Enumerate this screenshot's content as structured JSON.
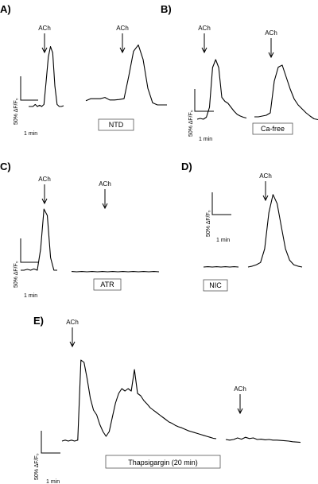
{
  "chart_data": [
    {
      "type": "line",
      "panel": "A)",
      "stimulus_label": "ACh",
      "scale_y": "50% ΔF/F₀",
      "scale_x": "1 min",
      "condition_label": "NTD",
      "series": [
        {
          "values": [
            0,
            0,
            0,
            0.05,
            0,
            0.03,
            0,
            0.05,
            0.6,
            1.2,
            1.45,
            1.3,
            0.5,
            0.05,
            0,
            0,
            0.02
          ]
        },
        {
          "values": [
            0.1,
            0.15,
            0.15,
            0.15,
            0.18,
            0.12,
            0.12,
            0.13,
            0.15,
            0.7,
            1.3,
            1.45,
            1.1,
            0.4,
            0.05,
            0,
            0,
            0
          ]
        }
      ]
    },
    {
      "type": "line",
      "panel": "B)",
      "stimulus_label": "ACh",
      "scale_y": "50% ΔF/F₀",
      "scale_x": "1 min",
      "condition_label": "Ca-free",
      "series": [
        {
          "values": [
            0,
            0.02,
            0,
            0.05,
            0.3,
            1.3,
            1.5,
            1.3,
            0.55,
            0.45,
            0.4,
            0.3,
            0.2,
            0.12,
            0.08,
            0.05,
            0.03
          ]
        },
        {
          "values": [
            0.1,
            0.1,
            0.12,
            0.14,
            0.2,
            1.0,
            1.35,
            1.4,
            1.1,
            0.8,
            0.55,
            0.4,
            0.3,
            0.2,
            0.12,
            0.05,
            0.03
          ]
        }
      ]
    },
    {
      "type": "line",
      "panel": "C)",
      "stimulus_label": "ACh",
      "scale_y": "50% ΔF/F₀",
      "scale_x": "1 min",
      "condition_label": "ATR",
      "series": [
        {
          "values": [
            0,
            0,
            0.02,
            0,
            0.03,
            0,
            0.5,
            1.45,
            1.3,
            0.3,
            0,
            0
          ]
        },
        {
          "values": [
            0.02,
            0,
            0.02,
            0,
            0.02,
            0,
            0.02,
            0,
            0.02,
            0,
            0.02,
            0,
            0.02,
            0,
            0.02,
            0,
            0.02,
            0
          ]
        }
      ]
    },
    {
      "type": "line",
      "panel": "D)",
      "stimulus_label": "ACh",
      "scale_y": "50% ΔF/F₀",
      "scale_x": "1 min",
      "condition_label": "NIC",
      "series": [
        {
          "values": [
            0,
            0.02,
            0,
            0.02,
            0,
            0.02,
            0,
            0.02,
            0
          ]
        },
        {
          "values": [
            0,
            0.02,
            0.05,
            0.1,
            0.4,
            1.2,
            1.6,
            1.4,
            0.9,
            0.4,
            0.15,
            0.05,
            0.02,
            0
          ]
        }
      ]
    },
    {
      "type": "line",
      "panel": "E)",
      "stimulus_label": "ACh",
      "scale_y": "50% ΔF/F₀",
      "scale_x": "1 min",
      "condition_label": "Thapsigargin (20 min)",
      "series": [
        {
          "values": [
            0,
            0.02,
            0,
            0.02,
            0,
            0.02,
            1.7,
            1.65,
            1.3,
            0.9,
            0.65,
            0.55,
            0.35,
            0.2,
            0.1,
            0.2,
            0.5,
            0.8,
            1.0,
            1.1,
            1.05,
            1.1,
            1.05,
            1.5,
            1.0,
            0.95,
            0.85,
            0.78,
            0.7,
            0.65,
            0.6,
            0.55,
            0.5,
            0.45,
            0.4,
            0.37,
            0.33,
            0.3,
            0.28,
            0.25,
            0.22,
            0.2,
            0.18,
            0.16,
            0.14,
            0.12,
            0.1,
            0.08,
            0.06,
            0.05
          ]
        },
        {
          "values": [
            0.05,
            0.03,
            0.05,
            0.1,
            0.06,
            0.12,
            0.08,
            0.1,
            0.05,
            0.06,
            0.04,
            0.05,
            0.03,
            0.03,
            0.02,
            0.01,
            0.0,
            -0.02,
            -0.03,
            -0.04
          ]
        }
      ]
    }
  ]
}
